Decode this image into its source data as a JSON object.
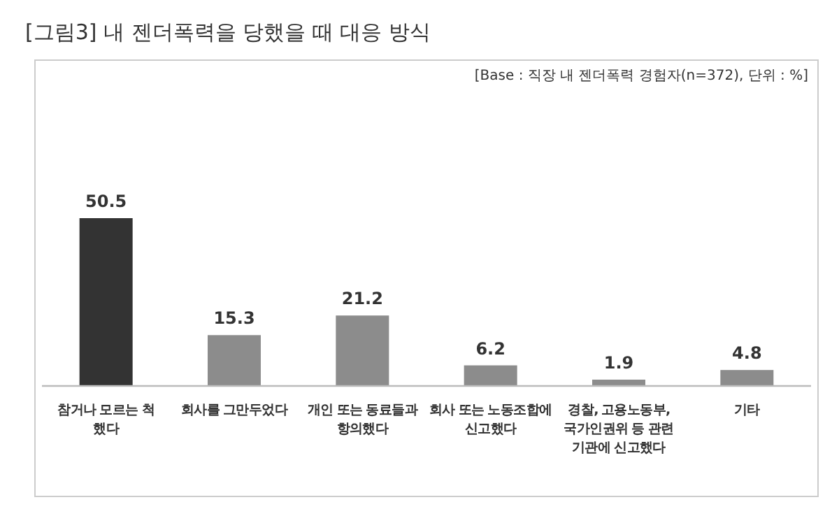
{
  "chart_data": {
    "type": "bar",
    "title": "[그림3] 내 젠더폭력을 당했을 때 대응 방식",
    "annotations": [
      "[Base : 직장 내 젠더폭력 경험자(n=372), 단위 : %]"
    ],
    "categories": [
      "참거나 모르는 척\n했다",
      "회사를 그만두었다",
      "개인 또는 동료들과\n항의했다",
      "회사 또는 노동조합에\n신고했다",
      "경찰, 고용노동부,\n국가인권위 등 관련\n기관에 신고했다",
      "기타"
    ],
    "values": [
      50.5,
      15.3,
      21.2,
      6.2,
      1.9,
      4.8
    ],
    "colors": [
      "#333333",
      "#8c8c8c",
      "#8c8c8c",
      "#8c8c8c",
      "#8c8c8c",
      "#8c8c8c"
    ],
    "data_labels": true
  }
}
